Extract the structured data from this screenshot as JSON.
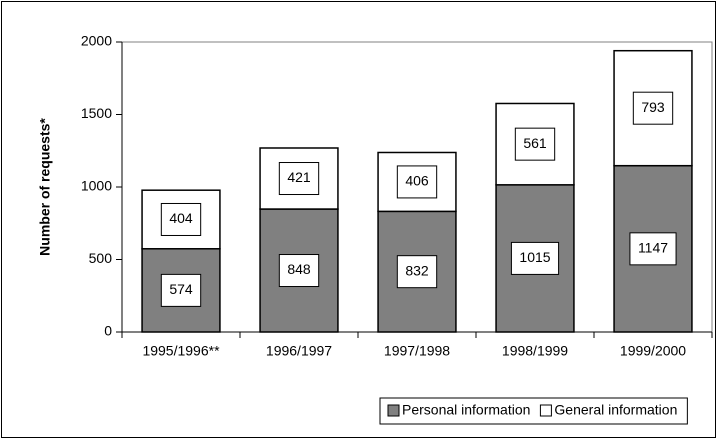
{
  "chart_data": {
    "type": "stacked_bar",
    "y_label": "Number of requests*",
    "categories": [
      "1995/1996**",
      "1996/1997",
      "1997/1998",
      "1998/1999",
      "1999/2000"
    ],
    "series": [
      {
        "name": "Personal information",
        "color": "#808080",
        "values": [
          574,
          848,
          832,
          1015,
          1147
        ]
      },
      {
        "name": "General information",
        "color": "#ffffff",
        "values": [
          404,
          421,
          406,
          561,
          793
        ]
      }
    ],
    "ylim": [
      0,
      2000
    ],
    "yticks": [
      0,
      500,
      1000,
      1500,
      2000
    ],
    "grid": false,
    "legend": "bottom-right"
  }
}
